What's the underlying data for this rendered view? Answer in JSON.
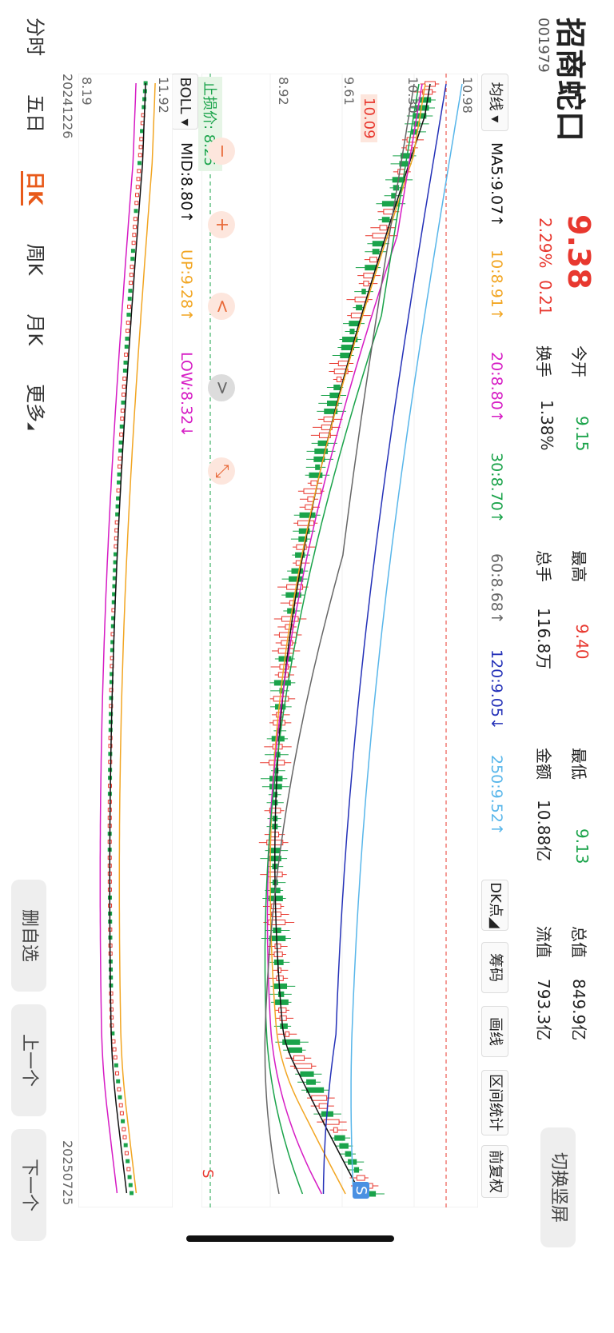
{
  "stock": {
    "name": "招商蛇口",
    "code": "001979",
    "price": "9.38",
    "change_pct": "2.29%",
    "change_amt": "0.21"
  },
  "quote": {
    "open_label": "今开",
    "open": "9.15",
    "high_label": "最高",
    "high": "9.40",
    "low_label": "最低",
    "low": "9.13",
    "mcap_label": "总值",
    "mcap": "849.9亿",
    "turnover_label": "换手",
    "turnover": "1.38%",
    "volume_label": "总手",
    "volume": "116.8万",
    "amount_label": "金额",
    "amount": "10.88亿",
    "float_label": "流值",
    "float": "793.3亿"
  },
  "toolbar": {
    "switch_portrait": "切换竖屏",
    "dk_point": "DK点",
    "chips": "筹码",
    "draw": "画线",
    "range_stats": "区间统计",
    "adjust": "前复权"
  },
  "ma_bar": {
    "selector": "均线",
    "ma5": "MA5:9.07↑",
    "ma10": "10:8.91↑",
    "ma20": "20:8.80↑",
    "ma30": "30:8.70↑",
    "ma60": "60:8.68↑",
    "ma120": "120:9.05↓",
    "ma250": "250:9.52↑"
  },
  "boll_bar": {
    "selector": "BOLL",
    "mid": "MID:8.80↑",
    "up": "UP:9.28↑",
    "low": "LOW:8.32↓"
  },
  "chart_labels": {
    "main_top": "10.98",
    "main_r1": "10.30",
    "main_r2": "9.61",
    "main_r3": "8.92",
    "boll_top": "11.92",
    "boll_bottom": "8.19",
    "date_start": "20241226",
    "date_end": "20250725",
    "stop_loss": "止损价: 8.25",
    "hi_tag": "10.09",
    "sell_marker": "S",
    "sell_marker_bottom": "S"
  },
  "chart_controls": {
    "zoom_in": "+",
    "zoom_out": "−",
    "prev": "<",
    "next": ">",
    "collapse": "⤡"
  },
  "period_tabs": [
    "分时",
    "五日",
    "日K",
    "周K",
    "月K",
    "更多"
  ],
  "active_tab": "日K",
  "bottom_actions": {
    "remove_watch": "删自选",
    "prev_stock": "上一个",
    "next_stock": "下一个"
  },
  "colors": {
    "up": "#e8382f",
    "down": "#1aa34a",
    "ma5": "#111111",
    "ma10": "#f2a623",
    "ma20": "#d61cc4",
    "ma30": "#1aa34a",
    "ma60": "#666666",
    "ma120": "#2431b8",
    "ma250": "#58b6ea"
  },
  "chart_data": {
    "type": "candlestick",
    "x_start": "20241226",
    "x_end": "20250725",
    "y_ticks": [
      "10.98",
      "10.30",
      "9.61",
      "8.92"
    ],
    "boll_range": [
      "8.19",
      "11.92"
    ]
  }
}
